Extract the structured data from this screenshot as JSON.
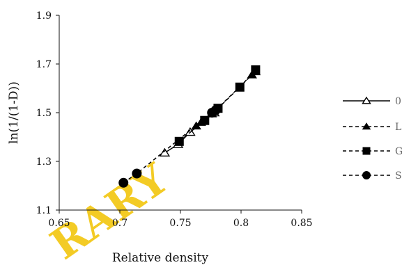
{
  "chart_data": {
    "type": "scatter",
    "title": "",
    "xlabel": "Relative density",
    "ylabel": "ln(1/(1-D))",
    "xlim": [
      0.65,
      0.85
    ],
    "ylim": [
      1.1,
      1.9
    ],
    "xticks": [
      "0.65",
      "0.7",
      "0.75",
      "0.8",
      "0.85"
    ],
    "yticks": [
      "1.1",
      "1.3",
      "1.5",
      "1.7",
      "1.9"
    ],
    "grid": false,
    "legend_position": "right",
    "series": [
      {
        "name": "0",
        "marker": "triangle-open",
        "line": "solid",
        "x": [
          0.737,
          0.748,
          0.758,
          0.778
        ],
        "y": [
          1.335,
          1.37,
          1.42,
          1.5
        ]
      },
      {
        "name": "L",
        "marker": "triangle-filled",
        "line": "dashed",
        "x": [
          0.763,
          0.767,
          0.776,
          0.78,
          0.809,
          0.812
        ],
        "y": [
          1.445,
          1.46,
          1.495,
          1.515,
          1.655,
          1.668
        ]
      },
      {
        "name": "G",
        "marker": "square",
        "line": "dashed",
        "x": [
          0.749,
          0.77,
          0.781,
          0.799,
          0.812
        ],
        "y": [
          1.382,
          1.468,
          1.518,
          1.605,
          1.676
        ]
      },
      {
        "name": "S",
        "marker": "circle",
        "line": "dashed",
        "x": [
          0.703,
          0.714,
          0.776,
          0.779
        ],
        "y": [
          1.212,
          1.25,
          1.5,
          1.51
        ]
      }
    ],
    "colors": {
      "series": "#000000",
      "axis": "#111111",
      "legend_text": "#666666",
      "watermark": "#f2c200"
    }
  },
  "watermark": "RARY"
}
